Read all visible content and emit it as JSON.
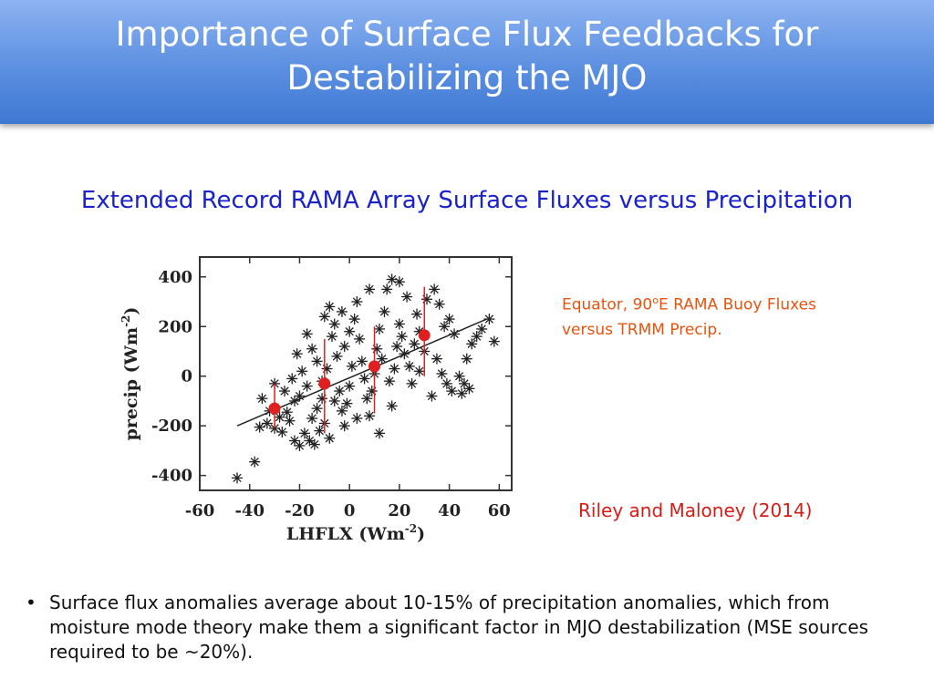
{
  "slide": {
    "title_line1": "Importance of Surface Flux Feedbacks for",
    "title_line2": "Destabilizing the MJO",
    "subtitle": "Extended Record RAMA Array Surface Fluxes versus Precipitation",
    "caption_line1_pre": "Equator, 90",
    "caption_line1_sup": "o",
    "caption_line1_post": "E RAMA Buoy Fluxes",
    "caption_line2": "versus TRMM Precip.",
    "citation": "Riley and Maloney (2014)",
    "bullet_marker": "•",
    "bullet_text": "Surface flux anomalies average about 10-15% of precipitation anomalies, which from moisture mode theory make them a significant factor in MJO destabilization (MSE sources required to be ~20%)."
  },
  "chart_data": {
    "type": "scatter",
    "xlabel": "LHFLX (Wm",
    "xlabel_sup": "-2",
    "xlabel_close": ")",
    "ylabel": "precip (Wm",
    "ylabel_sup": "-2",
    "ylabel_close": ")",
    "xlim": [
      -60,
      65
    ],
    "ylim": [
      -460,
      480
    ],
    "x_ticks": [
      -60,
      -40,
      -20,
      0,
      20,
      40,
      60
    ],
    "y_ticks": [
      -400,
      -200,
      0,
      200,
      400
    ],
    "marker": "asterisk",
    "marker_color": "#222222",
    "points": [
      [
        -45,
        -410
      ],
      [
        -38,
        -345
      ],
      [
        -33,
        -190
      ],
      [
        -36,
        -205
      ],
      [
        -30,
        -210
      ],
      [
        -28,
        -165
      ],
      [
        -32,
        -140
      ],
      [
        -25,
        -145
      ],
      [
        -27,
        -225
      ],
      [
        -30,
        -30
      ],
      [
        -26,
        -60
      ],
      [
        -22,
        -100
      ],
      [
        -20,
        -80
      ],
      [
        -24,
        -180
      ],
      [
        -18,
        -230
      ],
      [
        -16,
        -260
      ],
      [
        -14,
        -275
      ],
      [
        -20,
        -280
      ],
      [
        -22,
        -260
      ],
      [
        -12,
        -220
      ],
      [
        -10,
        -190
      ],
      [
        -8,
        -250
      ],
      [
        -15,
        -170
      ],
      [
        -13,
        -130
      ],
      [
        -11,
        -90
      ],
      [
        -17,
        -40
      ],
      [
        -19,
        20
      ],
      [
        -21,
        90
      ],
      [
        -15,
        110
      ],
      [
        -13,
        60
      ],
      [
        -11,
        -20
      ],
      [
        -9,
        30
      ],
      [
        -7,
        160
      ],
      [
        -10,
        240
      ],
      [
        -8,
        280
      ],
      [
        -6,
        210
      ],
      [
        -5,
        80
      ],
      [
        -4,
        -60
      ],
      [
        -3,
        -140
      ],
      [
        -2,
        -200
      ],
      [
        -1,
        -110
      ],
      [
        0,
        -40
      ],
      [
        1,
        40
      ],
      [
        -2,
        120
      ],
      [
        0,
        180
      ],
      [
        2,
        230
      ],
      [
        3,
        300
      ],
      [
        4,
        150
      ],
      [
        5,
        60
      ],
      [
        6,
        -10
      ],
      [
        7,
        -90
      ],
      [
        8,
        -160
      ],
      [
        9,
        -60
      ],
      [
        10,
        10
      ],
      [
        11,
        110
      ],
      [
        12,
        190
      ],
      [
        14,
        260
      ],
      [
        15,
        350
      ],
      [
        13,
        70
      ],
      [
        16,
        -20
      ],
      [
        17,
        -120
      ],
      [
        18,
        30
      ],
      [
        19,
        120
      ],
      [
        20,
        210
      ],
      [
        21,
        160
      ],
      [
        22,
        90
      ],
      [
        24,
        40
      ],
      [
        25,
        -30
      ],
      [
        26,
        130
      ],
      [
        27,
        250
      ],
      [
        28,
        180
      ],
      [
        30,
        100
      ],
      [
        31,
        310
      ],
      [
        23,
        320
      ],
      [
        17,
        390
      ],
      [
        34,
        350
      ],
      [
        36,
        290
      ],
      [
        38,
        200
      ],
      [
        40,
        230
      ],
      [
        42,
        170
      ],
      [
        35,
        70
      ],
      [
        37,
        10
      ],
      [
        39,
        -30
      ],
      [
        41,
        -60
      ],
      [
        44,
        0
      ],
      [
        46,
        -30
      ],
      [
        48,
        -50
      ],
      [
        45,
        -70
      ],
      [
        47,
        70
      ],
      [
        49,
        130
      ],
      [
        51,
        160
      ],
      [
        53,
        190
      ],
      [
        56,
        230
      ],
      [
        58,
        140
      ],
      [
        -35,
        -90
      ],
      [
        -23,
        -10
      ],
      [
        -6,
        -100
      ],
      [
        3,
        -170
      ],
      [
        12,
        -230
      ],
      [
        -17,
        170
      ],
      [
        -3,
        260
      ],
      [
        8,
        350
      ],
      [
        20,
        380
      ],
      [
        28,
        20
      ],
      [
        33,
        -80
      ]
    ],
    "fit_line": [
      [
        -45,
        -200
      ],
      [
        55,
        230
      ]
    ],
    "bins": [
      {
        "x": -30,
        "mean": -130,
        "low": -210,
        "high": -30
      },
      {
        "x": -10,
        "mean": -30,
        "low": -230,
        "high": 150
      },
      {
        "x": 10,
        "mean": 40,
        "low": -150,
        "high": 200
      },
      {
        "x": 30,
        "mean": 165,
        "low": 0,
        "high": 360
      }
    ],
    "bin_color": "#e02020"
  }
}
